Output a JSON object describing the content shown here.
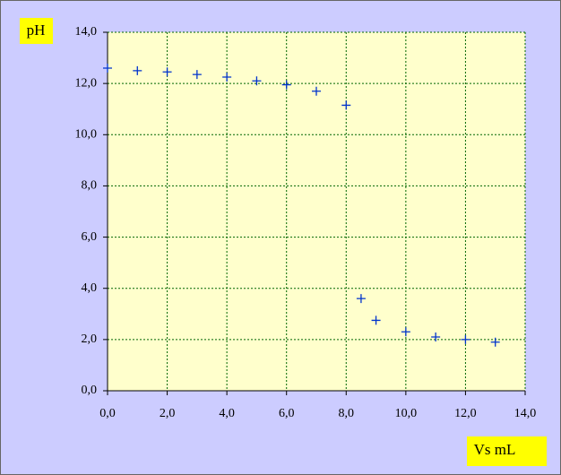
{
  "chart_data": {
    "type": "scatter",
    "x_label": "Vs mL",
    "y_label": "pH",
    "series": [
      {
        "color": "#0033cc",
        "x": [
          0,
          1,
          2,
          3,
          4,
          5,
          6,
          7,
          8,
          8.5,
          9,
          10,
          11,
          12,
          13
        ],
        "values": [
          12.6,
          12.5,
          12.45,
          12.35,
          12.25,
          12.1,
          11.95,
          11.7,
          11.15,
          3.6,
          2.75,
          2.3,
          2.1,
          2.0,
          1.9
        ]
      }
    ],
    "xlim": [
      0,
      14
    ],
    "ylim": [
      0,
      14
    ],
    "xticks": [
      {
        "value": 0,
        "label": "0,0"
      },
      {
        "value": 2,
        "label": "2,0"
      },
      {
        "value": 4,
        "label": "4,0"
      },
      {
        "value": 6,
        "label": "6,0"
      },
      {
        "value": 8,
        "label": "8,0"
      },
      {
        "value": 10,
        "label": "10,0"
      },
      {
        "value": 12,
        "label": "12,0"
      },
      {
        "value": 14,
        "label": "14,0"
      }
    ],
    "yticks": [
      {
        "value": 0,
        "label": "0,0"
      },
      {
        "value": 2,
        "label": "2,0"
      },
      {
        "value": 4,
        "label": "4,0"
      },
      {
        "value": 6,
        "label": "6,0"
      },
      {
        "value": 8,
        "label": "8,0"
      },
      {
        "value": 10,
        "label": "10,0"
      },
      {
        "value": 12,
        "label": "12,0"
      },
      {
        "value": 14,
        "label": "14,0"
      }
    ],
    "grid": true
  }
}
